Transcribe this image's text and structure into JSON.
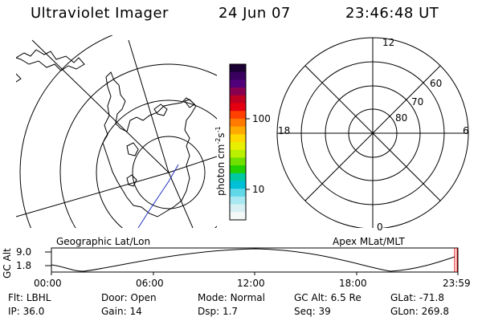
{
  "header": {
    "title": "Ultraviolet Imager",
    "date": "24 Jun 07",
    "time": "23:46:48 UT"
  },
  "colorbar": {
    "label": "photon cm",
    "label_sup1": "-2",
    "label_mid": "s",
    "label_sup2": "-1",
    "ticks": [
      "100",
      "10"
    ],
    "colors": [
      "#1b0033",
      "#3a0060",
      "#52007a",
      "#8a0050",
      "#c00020",
      "#e40010",
      "#ff4000",
      "#ff7a00",
      "#ffaa00",
      "#ffd800",
      "#e8f000",
      "#b8f000",
      "#70e000",
      "#20d000",
      "#00c8a0",
      "#00c0d8",
      "#60d8e8",
      "#a8e8f0",
      "#d8f0f4",
      "#f4f8f8"
    ]
  },
  "left_map": {
    "caption": "Geographic Lat/Lon"
  },
  "right_map": {
    "caption": "Apex MLat/MLT",
    "mlt_labels": [
      "12",
      "18",
      "6",
      "0"
    ],
    "mlat_labels": [
      "60",
      "70",
      "80"
    ]
  },
  "altitude_plot": {
    "ylabel": "GC Alt",
    "yticks": [
      "9.0",
      "1.8"
    ],
    "xticks": [
      "00:00",
      "06:00",
      "12:00",
      "18:00",
      "23:59"
    ]
  },
  "footer": {
    "row1": [
      {
        "label": "Flt:",
        "value": "LBHL"
      },
      {
        "label": "Door:",
        "value": "Open"
      },
      {
        "label": "Mode:",
        "value": "Normal"
      },
      {
        "label": "GC Alt:",
        "value": "6.5 Re"
      },
      {
        "label": "GLat:",
        "value": "-71.8"
      }
    ],
    "row2": [
      {
        "label": "IP:",
        "value": "36.0"
      },
      {
        "label": "Gain:",
        "value": "14"
      },
      {
        "label": "Dsp:",
        "value": "1.7"
      },
      {
        "label": "Seq:",
        "value": "39"
      },
      {
        "label": "GLon:",
        "value": "269.8"
      }
    ]
  }
}
